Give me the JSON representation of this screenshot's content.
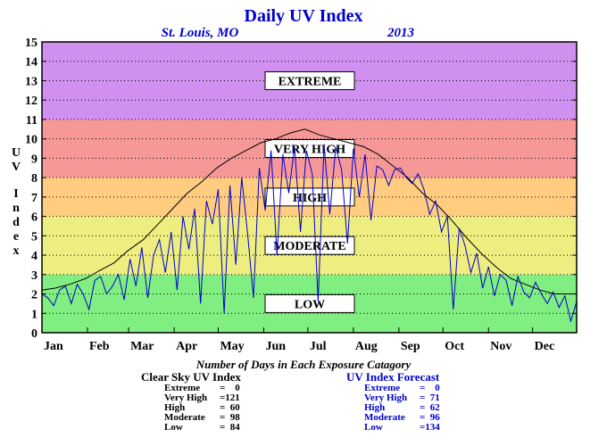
{
  "chart_data": {
    "type": "line",
    "title": "Daily UV Index",
    "location": "St. Louis, MO",
    "year": "2013",
    "ylabel": "UV Index",
    "xlabel": "",
    "ylim": [
      0,
      15
    ],
    "yticks": [
      "0",
      "1",
      "2",
      "3",
      "4",
      "5",
      "6",
      "7",
      "8",
      "9",
      "10",
      "11",
      "12",
      "13",
      "14",
      "15"
    ],
    "xlim": [
      1,
      365
    ],
    "month_labels": [
      "Jan",
      "Feb",
      "Mar",
      "Apr",
      "May",
      "Jun",
      "Jul",
      "Aug",
      "Sep",
      "Oct",
      "Nov",
      "Dec"
    ],
    "month_start_day": [
      1,
      32,
      60,
      91,
      121,
      152,
      182,
      213,
      244,
      274,
      305,
      335
    ],
    "grid": "horizontal dotted",
    "bands": [
      {
        "label": "LOW",
        "from": 0,
        "to": 3,
        "color": "#80ee80"
      },
      {
        "label": "MODERATE",
        "from": 3,
        "to": 6,
        "color": "#eeee80"
      },
      {
        "label": "HIGH",
        "from": 6,
        "to": 8,
        "color": "#ffcc80"
      },
      {
        "label": "VERY HIGH",
        "from": 8,
        "to": 11,
        "color": "#f79898"
      },
      {
        "label": "EXTREME",
        "from": 11,
        "to": 15,
        "color": "#d090f0"
      }
    ],
    "series": [
      {
        "name": "Clear Sky UV Index",
        "color": "#000000",
        "x": [
          1,
          10,
          20,
          31,
          40,
          50,
          59,
          70,
          80,
          90,
          100,
          110,
          120,
          130,
          140,
          150,
          160,
          170,
          180,
          190,
          200,
          210,
          220,
          230,
          240,
          250,
          260,
          270,
          280,
          290,
          300,
          310,
          320,
          330,
          340,
          350,
          365
        ],
        "y": [
          2.2,
          2.3,
          2.5,
          2.8,
          3.2,
          3.6,
          4.2,
          4.8,
          5.6,
          6.4,
          7.2,
          7.8,
          8.5,
          9.0,
          9.4,
          9.8,
          10.0,
          10.3,
          10.5,
          10.2,
          10.0,
          9.8,
          9.6,
          9.2,
          8.6,
          8.0,
          7.2,
          6.6,
          5.8,
          4.9,
          4.1,
          3.4,
          2.8,
          2.5,
          2.2,
          2.0,
          2.0
        ]
      },
      {
        "name": "UV Index Forecast",
        "color": "#0000cc",
        "x": [
          1,
          5,
          9,
          13,
          17,
          21,
          25,
          29,
          33,
          37,
          41,
          45,
          49,
          53,
          57,
          61,
          65,
          69,
          73,
          77,
          81,
          85,
          89,
          93,
          97,
          101,
          105,
          109,
          113,
          117,
          121,
          125,
          129,
          133,
          137,
          141,
          145,
          149,
          153,
          157,
          161,
          165,
          169,
          173,
          177,
          181,
          185,
          189,
          193,
          197,
          201,
          205,
          209,
          213,
          217,
          221,
          225,
          229,
          233,
          237,
          241,
          245,
          249,
          253,
          257,
          261,
          265,
          269,
          273,
          277,
          281,
          285,
          289,
          293,
          297,
          301,
          305,
          309,
          313,
          317,
          321,
          325,
          329,
          333,
          337,
          341,
          345,
          349,
          353,
          357,
          361,
          365
        ],
        "y": [
          2.0,
          1.8,
          1.4,
          2.2,
          2.4,
          1.5,
          2.5,
          2.0,
          1.2,
          2.7,
          2.9,
          2.0,
          2.4,
          3.0,
          1.7,
          3.8,
          2.4,
          4.4,
          1.8,
          4.0,
          4.8,
          3.1,
          5.2,
          2.2,
          6.0,
          4.3,
          6.4,
          1.5,
          6.8,
          5.6,
          7.4,
          1.0,
          7.6,
          3.5,
          8.0,
          5.1,
          1.8,
          8.5,
          6.3,
          9.4,
          4.0,
          9.2,
          7.2,
          9.6,
          5.2,
          9.4,
          8.2,
          1.6,
          9.7,
          6.1,
          9.6,
          8.4,
          4.6,
          9.5,
          7.0,
          9.2,
          5.8,
          8.6,
          8.4,
          7.6,
          8.4,
          8.5,
          8.0,
          7.7,
          8.2,
          7.4,
          6.1,
          6.8,
          5.2,
          6.0,
          1.2,
          5.4,
          4.5,
          3.1,
          4.1,
          2.3,
          3.4,
          1.9,
          3.0,
          2.7,
          1.4,
          2.9,
          2.1,
          1.8,
          2.6,
          2.0,
          1.5,
          2.1,
          1.3,
          1.9,
          0.6,
          1.6
        ]
      }
    ],
    "summary_title": "Number of Days in Each Exposure Catagory",
    "summary": [
      {
        "title": "Clear Sky UV Index",
        "color": "#000000",
        "rows": [
          {
            "label": "Extreme",
            "value": "=    0"
          },
          {
            "label": "Very High",
            "value": "=121"
          },
          {
            "label": "High",
            "value": "=  60"
          },
          {
            "label": "Moderate",
            "value": "=  98"
          },
          {
            "label": "Low",
            "value": "=  84"
          }
        ]
      },
      {
        "title": "UV Index Forecast",
        "color": "#0000cc",
        "rows": [
          {
            "label": "Extreme",
            "value": "=    0"
          },
          {
            "label": "Very High",
            "value": "=  71"
          },
          {
            "label": "High",
            "value": "=  62"
          },
          {
            "label": "Moderate",
            "value": "=  96"
          },
          {
            "label": "Low",
            "value": "=134"
          }
        ]
      }
    ]
  }
}
